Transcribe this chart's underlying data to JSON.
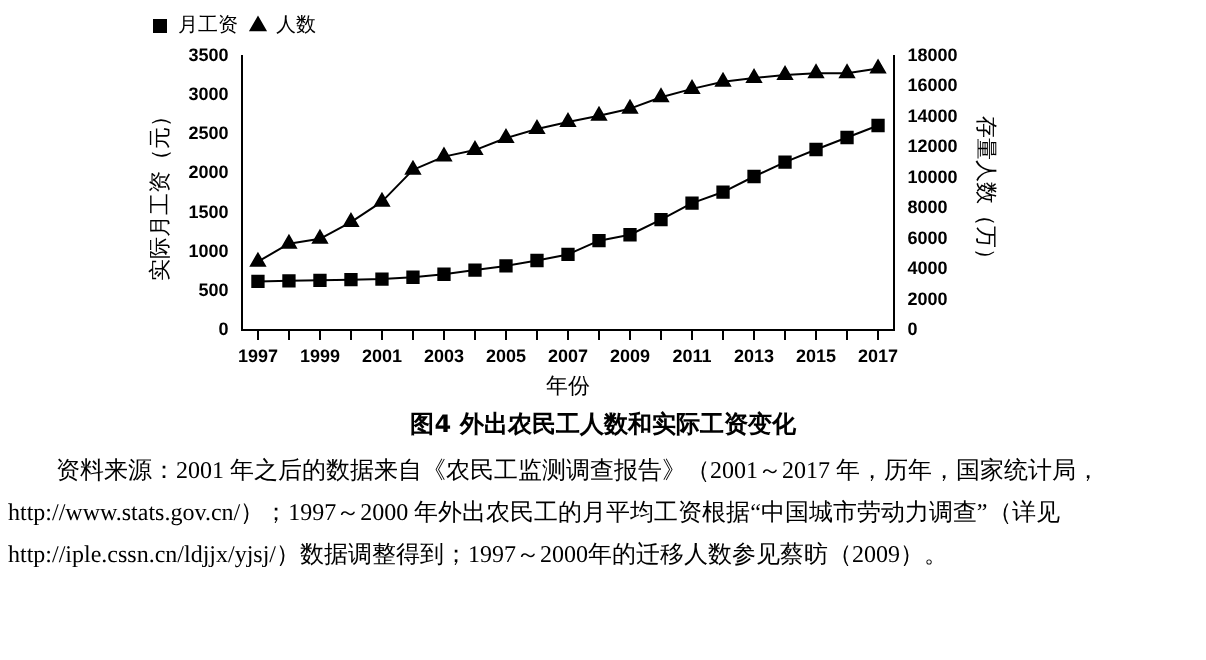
{
  "chart_data": {
    "type": "line",
    "categories": [
      "1997",
      null,
      "1999",
      null,
      "2001",
      null,
      "2003",
      null,
      "2005",
      null,
      "2007",
      null,
      "2009",
      null,
      "2011",
      null,
      "2013",
      null,
      "2015",
      null,
      "2017"
    ],
    "series": [
      {
        "name": "月工资",
        "color": "#000000",
        "marker": "square",
        "values": [
          620,
          628,
          635,
          643,
          650,
          674,
          712,
          766,
          819,
          888,
          965,
          1141,
          1217,
          1409,
          1620,
          1762,
          1961,
          2145,
          2306,
          2459,
          2612
        ]
      },
      {
        "name": "人数",
        "color": "#000000",
        "marker": "triangle",
        "axis": "y2",
        "values": [
          4490,
          5670,
          5990,
          7090,
          8430,
          10520,
          11390,
          11820,
          12610,
          13200,
          13670,
          14070,
          14540,
          15290,
          15840,
          16310,
          16550,
          16750,
          16860,
          16860,
          17180
        ]
      }
    ],
    "xlabel": "年份",
    "ylabel": "实际月工资（元）",
    "y2label": "存量人数（万）",
    "ylim": [
      0,
      3500
    ],
    "yticks": [
      0,
      500,
      1000,
      1500,
      2000,
      2500,
      3000,
      3500
    ],
    "y2lim": [
      0,
      18000
    ],
    "y2ticks": [
      0,
      2000,
      4000,
      6000,
      8000,
      10000,
      12000,
      14000,
      16000,
      18000
    ],
    "legend": "top left",
    "grid": false,
    "annotations": [
      "图4 外出农民工人数和实际工资变化",
      "资料来源：2001 年之后的数据来自《农民工监测调查报告》（2001～2017 年，历年，国家统计局，http://www.stats.gov.cn/）；1997～2000 年外出农民工的月平均工资根据“中国城市劳动力调查”（详见 http://iple.cssn.cn/ldjjx/yjsj/）数据调整得到；1997～2000年的迁移人数参见蔡昉（2009）。"
    ]
  }
}
